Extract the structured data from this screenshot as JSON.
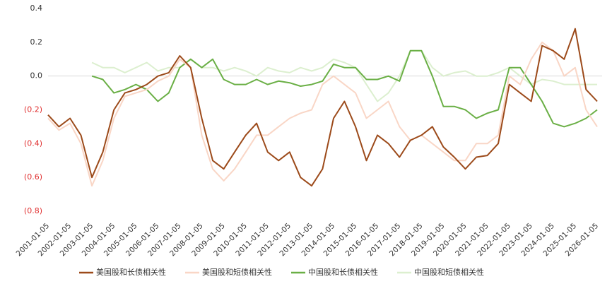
{
  "chart_data": {
    "type": "line",
    "x": [
      "2001-01-05",
      "2001-07-05",
      "2002-01-05",
      "2002-07-05",
      "2003-01-05",
      "2003-07-05",
      "2004-01-05",
      "2004-07-05",
      "2005-01-05",
      "2005-07-05",
      "2006-01-05",
      "2006-07-05",
      "2007-01-05",
      "2007-07-05",
      "2008-01-05",
      "2008-07-05",
      "2009-01-05",
      "2009-07-05",
      "2010-01-05",
      "2010-07-05",
      "2011-01-05",
      "2011-07-05",
      "2012-01-05",
      "2012-07-05",
      "2013-01-05",
      "2013-07-05",
      "2014-01-05",
      "2014-07-05",
      "2015-01-05",
      "2015-07-05",
      "2016-01-05",
      "2016-07-05",
      "2017-01-05",
      "2017-07-05",
      "2018-01-05",
      "2018-07-05",
      "2019-01-05",
      "2019-07-05",
      "2020-01-05",
      "2020-07-05",
      "2021-01-05",
      "2021-07-05",
      "2022-01-05",
      "2022-07-05",
      "2023-01-05",
      "2023-07-05",
      "2024-01-05",
      "2024-07-05",
      "2025-01-05",
      "2025-07-05",
      "2026-01-05"
    ],
    "series": [
      {
        "name": "美国股和长债相关性",
        "color": "#9c4a1a",
        "values": [
          -0.23,
          -0.3,
          -0.25,
          -0.35,
          -0.6,
          -0.45,
          -0.2,
          -0.1,
          -0.08,
          -0.05,
          0.0,
          0.02,
          0.12,
          0.05,
          -0.25,
          -0.5,
          -0.55,
          -0.45,
          -0.35,
          -0.28,
          -0.45,
          -0.5,
          -0.45,
          -0.6,
          -0.65,
          -0.55,
          -0.25,
          -0.15,
          -0.3,
          -0.5,
          -0.35,
          -0.4,
          -0.48,
          -0.38,
          -0.35,
          -0.3,
          -0.42,
          -0.48,
          -0.55,
          -0.48,
          -0.47,
          -0.4,
          -0.05,
          -0.1,
          -0.15,
          0.18,
          0.15,
          0.1,
          0.28,
          -0.08,
          -0.15
        ]
      },
      {
        "name": "美国股和短债相关性",
        "color": "#f9d6c6",
        "values": [
          -0.25,
          -0.32,
          -0.28,
          -0.4,
          -0.65,
          -0.5,
          -0.25,
          -0.12,
          -0.1,
          -0.08,
          -0.03,
          0.0,
          0.1,
          0.05,
          -0.35,
          -0.55,
          -0.62,
          -0.55,
          -0.45,
          -0.35,
          -0.35,
          -0.3,
          -0.25,
          -0.22,
          -0.2,
          -0.05,
          0.0,
          -0.05,
          -0.1,
          -0.25,
          -0.2,
          -0.15,
          -0.3,
          -0.38,
          -0.35,
          -0.4,
          -0.45,
          -0.5,
          -0.5,
          -0.4,
          -0.4,
          -0.35,
          0.0,
          -0.05,
          0.1,
          0.2,
          0.15,
          0.0,
          0.05,
          -0.2,
          -0.3
        ]
      },
      {
        "name": "中国股和长债相关性",
        "color": "#6aaf45",
        "values": [
          null,
          null,
          null,
          null,
          0.0,
          -0.02,
          -0.1,
          -0.08,
          -0.05,
          -0.08,
          -0.15,
          -0.1,
          0.05,
          0.1,
          0.05,
          0.1,
          -0.02,
          -0.05,
          -0.05,
          -0.02,
          -0.05,
          -0.03,
          -0.04,
          -0.06,
          -0.05,
          -0.03,
          0.07,
          0.05,
          0.05,
          -0.02,
          -0.02,
          0.0,
          -0.03,
          0.15,
          0.15,
          0.0,
          -0.18,
          -0.18,
          -0.2,
          -0.25,
          -0.22,
          -0.2,
          0.05,
          0.05,
          -0.05,
          -0.15,
          -0.28,
          -0.3,
          -0.28,
          -0.25,
          -0.2
        ]
      },
      {
        "name": "中国股和短债相关性",
        "color": "#dcefcf",
        "values": [
          null,
          null,
          null,
          null,
          0.08,
          0.05,
          0.05,
          0.02,
          0.05,
          0.08,
          0.03,
          0.05,
          0.05,
          0.1,
          0.05,
          0.05,
          0.03,
          0.05,
          0.03,
          0.0,
          0.05,
          0.03,
          0.02,
          0.05,
          0.03,
          0.05,
          0.1,
          0.08,
          0.05,
          -0.05,
          -0.15,
          -0.1,
          0.0,
          0.15,
          0.15,
          0.05,
          0.0,
          0.02,
          0.03,
          0.0,
          0.0,
          0.02,
          0.05,
          0.0,
          -0.05,
          -0.02,
          -0.03,
          -0.05,
          -0.05,
          -0.05,
          -0.05
        ]
      }
    ],
    "xlim": [
      "2001-01-05",
      "2026-01-05"
    ],
    "xticks": [
      "2001-01-05",
      "2002-01-05",
      "2003-01-05",
      "2004-01-05",
      "2005-01-05",
      "2006-01-05",
      "2007-01-05",
      "2008-01-05",
      "2009-01-05",
      "2010-01-05",
      "2011-01-05",
      "2012-01-05",
      "2013-01-05",
      "2014-01-05",
      "2015-01-05",
      "2016-01-05",
      "2017-01-05",
      "2018-01-05",
      "2019-01-05",
      "2020-01-05",
      "2021-01-05",
      "2022-01-05",
      "2023-01-05",
      "2024-01-05",
      "2025-01-05",
      "2026-01-05"
    ],
    "ylim": [
      -0.8,
      0.4
    ],
    "yticks": [
      0.4,
      0.2,
      {
        "value": 0,
        "label": "0.0"
      },
      {
        "value": -0.2,
        "label": "(0.2)"
      },
      {
        "value": -0.4,
        "label": "(0.4)"
      },
      {
        "value": -0.6,
        "label": "(0.6)"
      },
      {
        "value": -0.8,
        "label": "(0.8)"
      }
    ],
    "negative_label_color": "#e03030",
    "legend": "bottom"
  }
}
